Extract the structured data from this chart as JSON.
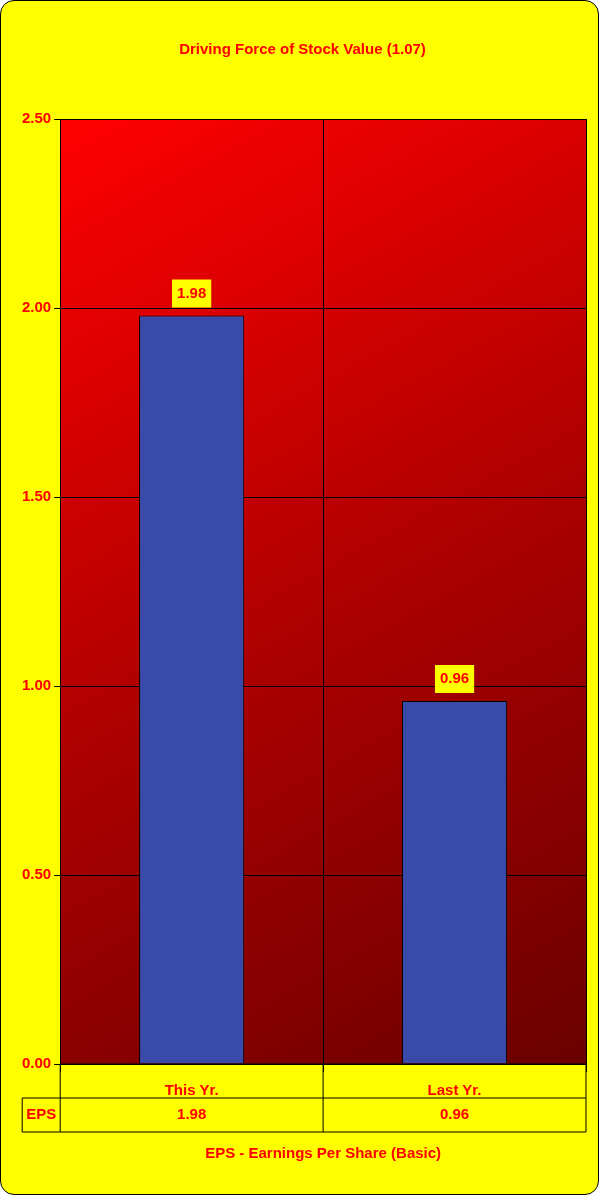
{
  "chart_data": {
    "type": "bar",
    "title": "Driving Force of Stock Value (1.07)",
    "xlabel": "EPS - Earnings Per Share (Basic)",
    "categories": [
      "This Yr.",
      "Last Yr."
    ],
    "series": [
      {
        "name": "EPS",
        "color": "#3a4aa8",
        "values": [
          1.98,
          0.96
        ],
        "value_labels": [
          "1.98",
          "0.96"
        ]
      }
    ],
    "ylim": [
      0,
      2.5
    ],
    "yticks": [
      {
        "value": 0,
        "label": "0.00"
      },
      {
        "value": 0.5,
        "label": "0.50"
      },
      {
        "value": 1,
        "label": "1.00"
      },
      {
        "value": 1.5,
        "label": "1.50"
      },
      {
        "value": 2,
        "label": "2.00"
      },
      {
        "value": 2.5,
        "label": "2.50"
      }
    ],
    "annotations": [
      {
        "text": "1.98",
        "x": "This Yr."
      },
      {
        "text": "0.96",
        "x": "Last Yr."
      }
    ],
    "grid": true,
    "legend": false
  }
}
